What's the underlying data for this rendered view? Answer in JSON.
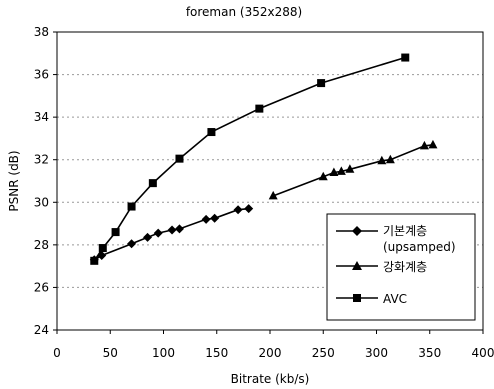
{
  "chart_data": {
    "type": "line",
    "title": "foreman (352x288)",
    "xlabel": "Bitrate (kb/s)",
    "ylabel": "PSNR (dB)",
    "xlim": [
      0,
      400
    ],
    "ylim": [
      24,
      38
    ],
    "xticks": [
      "0",
      "50",
      "100",
      "150",
      "200",
      "250",
      "300",
      "350",
      "400"
    ],
    "yticks": [
      "24",
      "26",
      "28",
      "30",
      "32",
      "34",
      "36",
      "38"
    ],
    "grid": "horizontal dashed",
    "legend_position": "lower-right",
    "series": [
      {
        "name": "기본계층",
        "name_line2": "(upsamped)",
        "marker": "diamond",
        "x": [
          35,
          42,
          70,
          85,
          95,
          108,
          115,
          140,
          148,
          170,
          180
        ],
        "y": [
          27.3,
          27.5,
          28.05,
          28.35,
          28.55,
          28.7,
          28.75,
          29.2,
          29.25,
          29.65,
          29.7
        ]
      },
      {
        "name": "강화계층",
        "marker": "triangle",
        "x": [
          203,
          250,
          260,
          267,
          275,
          305,
          313,
          345,
          353
        ],
        "y": [
          30.3,
          31.2,
          31.4,
          31.45,
          31.55,
          31.95,
          32.0,
          32.65,
          32.7
        ]
      },
      {
        "name": "AVC",
        "marker": "square",
        "x": [
          35,
          43,
          55,
          70,
          90,
          115,
          145,
          190,
          248,
          327
        ],
        "y": [
          27.25,
          27.85,
          28.6,
          29.8,
          30.9,
          32.05,
          33.3,
          34.4,
          35.6,
          36.8
        ]
      }
    ]
  }
}
